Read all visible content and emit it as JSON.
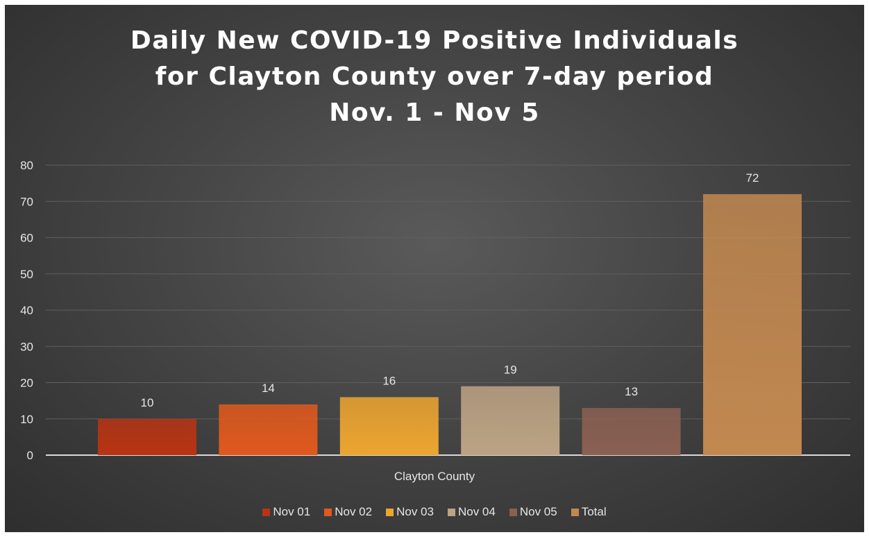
{
  "chart_data": {
    "type": "bar",
    "title_lines": [
      "Daily New COVID-19 Positive Individuals",
      "for Clayton County over 7-day period",
      "Nov. 1 - Nov 5"
    ],
    "categories": [
      "Clayton County"
    ],
    "series": [
      {
        "name": "Nov 01",
        "values": [
          10
        ],
        "color": "#b83413"
      },
      {
        "name": "Nov 02",
        "values": [
          14
        ],
        "color": "#e0591d"
      },
      {
        "name": "Nov 03",
        "values": [
          16
        ],
        "color": "#eda530"
      },
      {
        "name": "Nov 04",
        "values": [
          19
        ],
        "color": "#bca384"
      },
      {
        "name": "Nov 05",
        "values": [
          13
        ],
        "color": "#8a6052"
      },
      {
        "name": "Total",
        "values": [
          72
        ],
        "color": "#c28850"
      }
    ],
    "ylim": [
      0,
      80
    ],
    "yticks": [
      0,
      10,
      20,
      30,
      40,
      50,
      60,
      70,
      80
    ],
    "grid": true,
    "legend_position": "bottom",
    "data_labels": true,
    "colors": {
      "background": "#454545",
      "gridline": "#5f5f5f",
      "axis": "#d9d9d9",
      "text": "#e6e6e6",
      "title": "#ffffff"
    }
  }
}
